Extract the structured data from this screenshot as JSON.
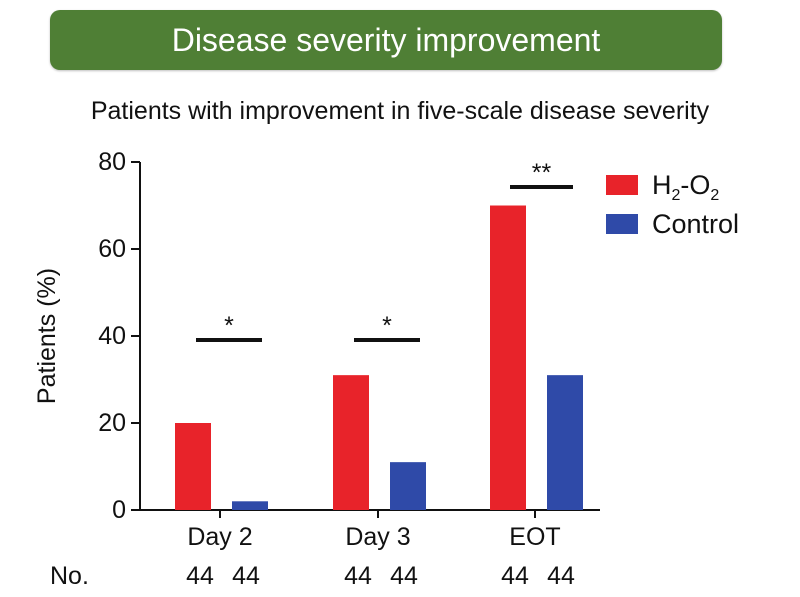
{
  "banner": {
    "title": "Disease severity improvement"
  },
  "chart_data": {
    "type": "bar",
    "title": "Patients with improvement in five-scale disease severity",
    "xlabel": "",
    "ylabel": "Patients (%)",
    "ylim": [
      0,
      80
    ],
    "yticks": [
      0,
      20,
      40,
      60,
      80
    ],
    "categories": [
      "Day 2",
      "Day 3",
      "EOT"
    ],
    "series": [
      {
        "name": "H2-O2",
        "color": "#e8232a",
        "values": [
          20,
          31,
          70
        ]
      },
      {
        "name": "Control",
        "color": "#2f4aa8",
        "values": [
          2,
          11,
          31
        ]
      }
    ],
    "legend": {
      "position": "top-right",
      "h2o2_label": {
        "H": "H",
        "sub1": "2",
        "dash": "-O",
        "sub2": "2"
      },
      "control_label": "Control"
    },
    "significance": [
      {
        "category": "Day 2",
        "label": "*"
      },
      {
        "category": "Day 3",
        "label": "*"
      },
      {
        "category": "EOT",
        "label": "**"
      }
    ],
    "n_row": {
      "label": "No.",
      "values": [
        [
          "44",
          "44"
        ],
        [
          "44",
          "44"
        ],
        [
          "44",
          "44"
        ]
      ]
    }
  }
}
